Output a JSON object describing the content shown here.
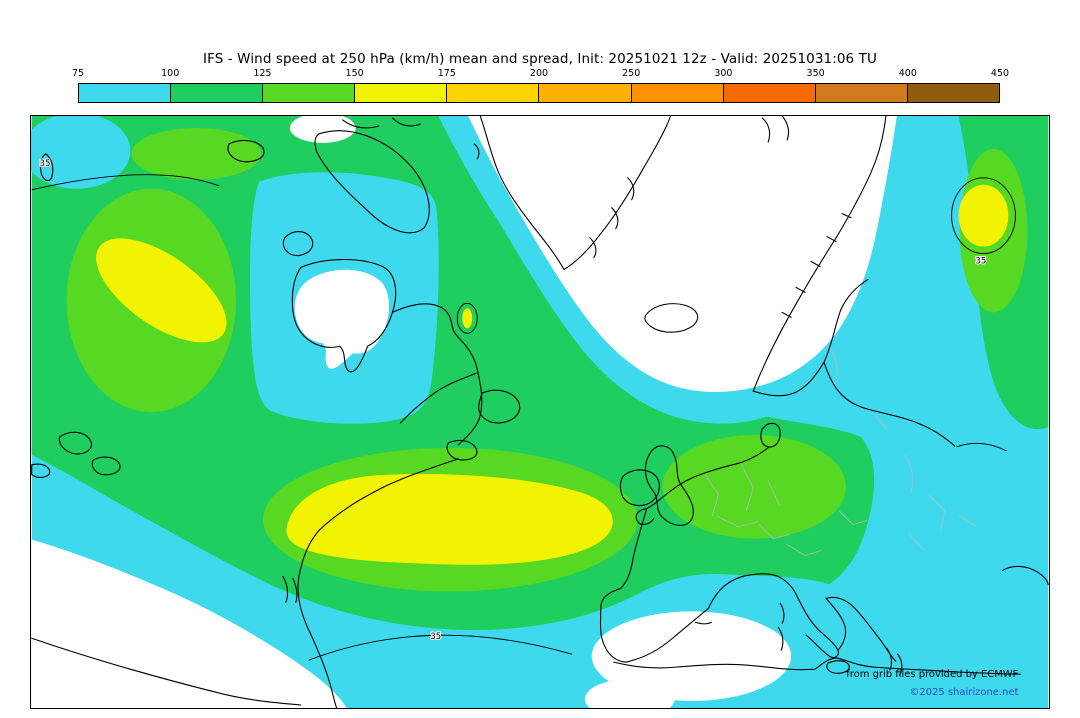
{
  "title": "IFS - Wind speed at 250 hPa (km/h) mean and spread, Init: 20251021 12z - Valid: 20251031:06 TU",
  "colorbar": {
    "tick_labels": [
      "75",
      "100",
      "125",
      "150",
      "175",
      "200",
      "250",
      "300",
      "350",
      "400",
      "450"
    ],
    "segment_colors": [
      "#3fd9ee",
      "#1fce5f",
      "#57d823",
      "#f2f303",
      "#ffd400",
      "#ffb000",
      "#ff9000",
      "#f56b00",
      "#cf7a1c",
      "#8f5d10"
    ]
  },
  "colors": {
    "map-cyan": "#3fd9ee",
    "map-green": "#1fce5f",
    "map-green-bright": "#57d823",
    "map-yellow": "#f2f303",
    "sea-white": "#ffffff",
    "coast-black": "#000000",
    "border-gray": "#b9b9b9",
    "link-blue": "#2b48c8"
  },
  "map": {
    "contour_labels": [
      {
        "text": "35"
      },
      {
        "text": "35"
      },
      {
        "text": "35"
      }
    ],
    "credits": {
      "source": "from grib files provided by ECMWF",
      "copyright": "©2025 shairizone.net"
    }
  }
}
